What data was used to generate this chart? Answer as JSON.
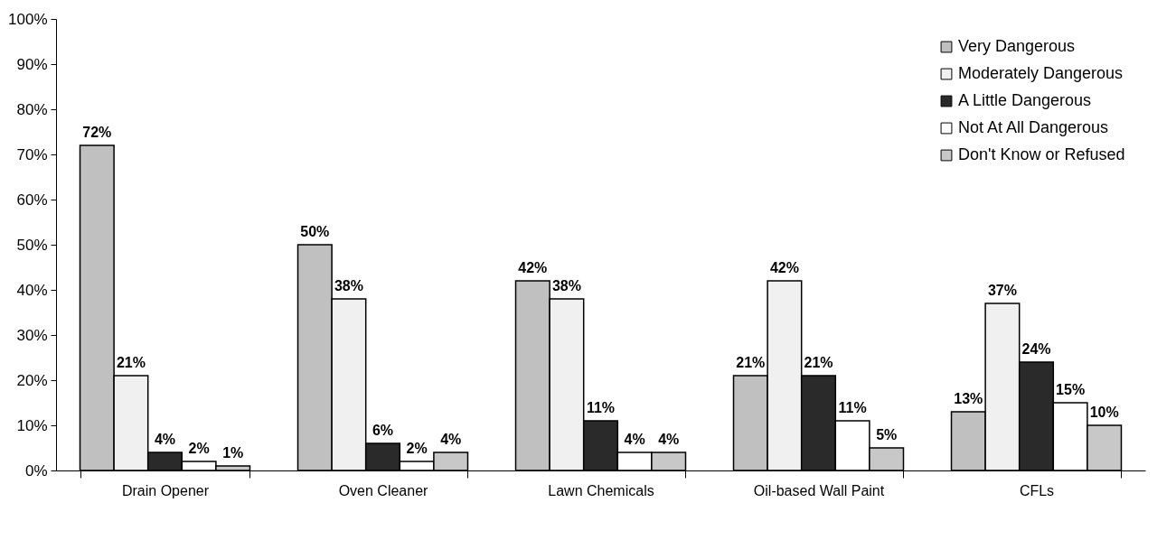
{
  "chart_data": {
    "type": "bar",
    "categories": [
      "Drain Opener",
      "Oven Cleaner",
      "Lawn Chemicals",
      "Oil-based Wall Paint",
      "CFLs"
    ],
    "series": [
      {
        "name": "Very Dangerous",
        "color": "#c0c0c0",
        "values": [
          72,
          50,
          42,
          21,
          13
        ],
        "value_labels": [
          "72%",
          "50%",
          "42%",
          "21%",
          "13%"
        ]
      },
      {
        "name": "Moderately Dangerous",
        "color": "#f0f0f0",
        "values": [
          21,
          38,
          38,
          42,
          37
        ],
        "value_labels": [
          "21%",
          "38%",
          "38%",
          "42%",
          "37%"
        ]
      },
      {
        "name": "A Little Dangerous",
        "color": "#2a2a2a",
        "values": [
          4,
          6,
          11,
          21,
          24
        ],
        "value_labels": [
          "4%",
          "6%",
          "11%",
          "21%",
          "24%"
        ]
      },
      {
        "name": "Not At All Dangerous",
        "color": "#ffffff",
        "values": [
          2,
          2,
          4,
          11,
          15
        ],
        "value_labels": [
          "2%",
          "2%",
          "4%",
          "11%",
          "15%"
        ]
      },
      {
        "name": "Don't Know or Refused",
        "color": "#c8c8c8",
        "values": [
          1,
          4,
          4,
          5,
          10
        ],
        "value_labels": [
          "1%",
          "4%",
          "4%",
          "5%",
          "10%"
        ]
      }
    ],
    "ylim": [
      0,
      100
    ],
    "yticks": [
      {
        "value": 0,
        "label": "0%"
      },
      {
        "value": 10,
        "label": "10%"
      },
      {
        "value": 20,
        "label": "20%"
      },
      {
        "value": 30,
        "label": "30%"
      },
      {
        "value": 40,
        "label": "40%"
      },
      {
        "value": 50,
        "label": "50%"
      },
      {
        "value": 60,
        "label": "60%"
      },
      {
        "value": 70,
        "label": "70%"
      },
      {
        "value": 80,
        "label": "80%"
      },
      {
        "value": 90,
        "label": "90%"
      },
      {
        "value": 100,
        "label": "100%"
      }
    ],
    "grid": false,
    "legend": "top right"
  }
}
